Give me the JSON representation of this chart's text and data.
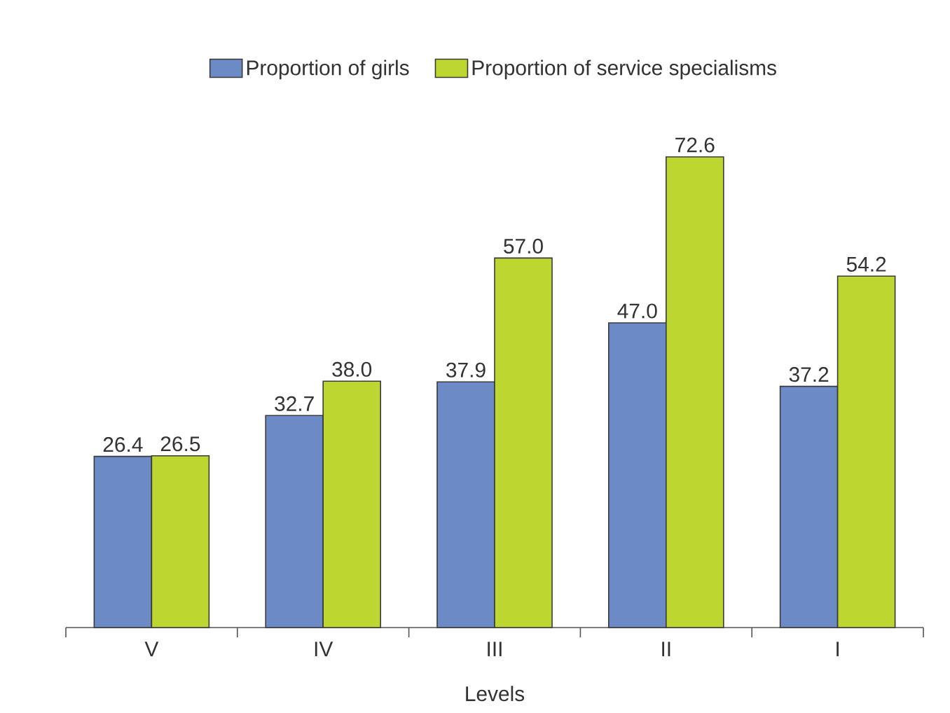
{
  "chart_data": {
    "type": "bar",
    "categories": [
      "V",
      "IV",
      "III",
      "II",
      "I"
    ],
    "xlabel": "Levels",
    "legend": "top",
    "tick_labels": "x",
    "series": [
      {
        "name": "Proportion of girls",
        "color": "#6b8ac6",
        "values": [
          26.4,
          32.7,
          37.9,
          47.0,
          37.2
        ],
        "value_labels": [
          "26.4",
          "32.7",
          "37.9",
          "47.0",
          "37.2"
        ]
      },
      {
        "name": "Proportion of service specialisms",
        "color": "#bed630",
        "values": [
          26.5,
          38.0,
          57.0,
          72.6,
          54.2
        ],
        "value_labels": [
          "26.5",
          "38.0",
          "57.0",
          "72.6",
          "54.2"
        ]
      }
    ]
  }
}
